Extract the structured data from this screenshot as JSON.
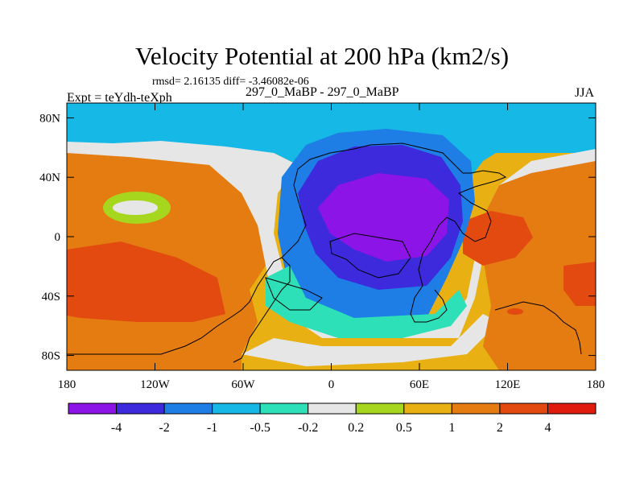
{
  "chart_data": {
    "type": "heatmap",
    "title": "Velocity Potential at 200 hPa (km2/s)",
    "stats": "rmsd= 2.16135 diff= -3.46082e-06",
    "left_label": "Expt = teYdh-teXph",
    "center_label": "297_0_MaBP - 297_0_MaBP",
    "right_label": "JJA",
    "xlim": [
      -180,
      180
    ],
    "ylim": [
      -90,
      90
    ],
    "x_ticks": [
      {
        "value": -180,
        "label": "180"
      },
      {
        "value": -120,
        "label": "120W"
      },
      {
        "value": -60,
        "label": "60W"
      },
      {
        "value": 0,
        "label": "0"
      },
      {
        "value": 60,
        "label": "60E"
      },
      {
        "value": 120,
        "label": "120E"
      },
      {
        "value": 180,
        "label": "180"
      }
    ],
    "y_ticks": [
      {
        "value": 80,
        "label": "80N"
      },
      {
        "value": 40,
        "label": "40N"
      },
      {
        "value": 0,
        "label": "0"
      },
      {
        "value": -40,
        "label": "40S"
      },
      {
        "value": -80,
        "label": "80S"
      }
    ],
    "colorbar": {
      "levels": [
        "-4",
        "-2",
        "-1",
        "-0.5",
        "-0.2",
        "0.2",
        "0.5",
        "1",
        "2",
        "4"
      ],
      "colors": [
        "#8c14e6",
        "#3c2adc",
        "#1e7ee6",
        "#16b8e6",
        "#2ee0b8",
        "#e6e6e6",
        "#a6d71e",
        "#e8b012",
        "#e47c12",
        "#e24a10",
        "#e01c0c"
      ]
    },
    "field_features": [
      {
        "name": "divergence-core",
        "lon": 40,
        "lat": 15,
        "value": -4.5
      },
      {
        "name": "convergence-east-pacific",
        "lon": -150,
        "lat": -25,
        "value": 2.5
      },
      {
        "name": "convergence-indian-ocean",
        "lon": 105,
        "lat": 5,
        "value": 2.5
      }
    ]
  }
}
